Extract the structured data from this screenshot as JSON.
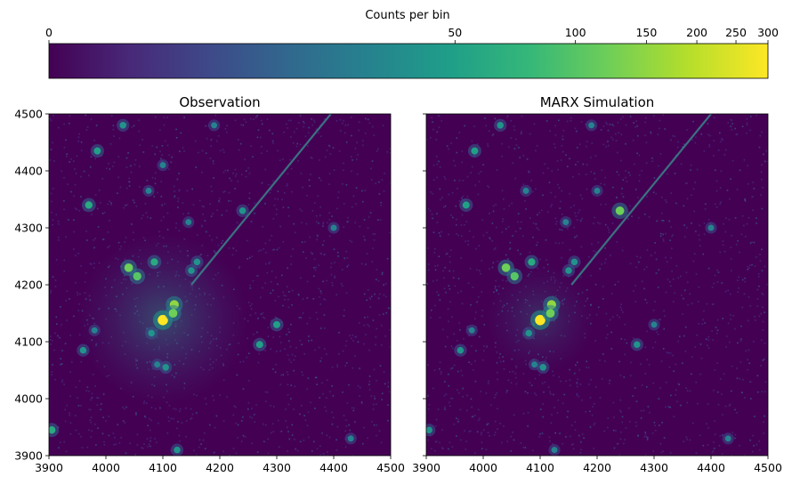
{
  "colorbar": {
    "label": "Counts per bin",
    "scale": "asinh",
    "ticks": [
      0,
      50,
      100,
      150,
      200,
      250,
      300
    ],
    "tick_labels": [
      "0",
      "50",
      "100",
      "150",
      "200",
      "250",
      "300"
    ],
    "vmin": 0,
    "vmax": 300,
    "colors": [
      "#440154",
      "#482878",
      "#3e4989",
      "#31688e",
      "#26828e",
      "#1f9e89",
      "#35b779",
      "#6ece58",
      "#b5de2b",
      "#fde725"
    ]
  },
  "chart_data": [
    {
      "type": "heatmap",
      "title": "Observation",
      "xlabel": "",
      "ylabel": "",
      "xlim": [
        3900,
        4500
      ],
      "ylim": [
        3900,
        4500
      ],
      "x_ticks": [
        3900,
        4000,
        4100,
        4200,
        4300,
        4400,
        4500
      ],
      "y_ticks": [
        3900,
        4000,
        4100,
        4200,
        4300,
        4400,
        4500
      ],
      "x_tick_labels": [
        "3900",
        "4000",
        "4100",
        "4200",
        "4300",
        "4400",
        "4500"
      ],
      "y_tick_labels": [
        "3900",
        "4000",
        "4100",
        "4200",
        "4300",
        "4400",
        "4500"
      ],
      "show_y_tick_labels": true,
      "sources": [
        {
          "x": 4100,
          "y": 4138,
          "counts": 300
        },
        {
          "x": 4120,
          "y": 4165,
          "counts": 150
        },
        {
          "x": 4118,
          "y": 4150,
          "counts": 120
        },
        {
          "x": 4040,
          "y": 4230,
          "counts": 120
        },
        {
          "x": 4055,
          "y": 4215,
          "counts": 100
        },
        {
          "x": 4085,
          "y": 4240,
          "counts": 60
        },
        {
          "x": 4080,
          "y": 4115,
          "counts": 40
        },
        {
          "x": 4240,
          "y": 4330,
          "counts": 40
        },
        {
          "x": 4300,
          "y": 4130,
          "counts": 50
        },
        {
          "x": 3970,
          "y": 4340,
          "counts": 60
        },
        {
          "x": 3985,
          "y": 4435,
          "counts": 50
        },
        {
          "x": 4030,
          "y": 4480,
          "counts": 40
        },
        {
          "x": 4190,
          "y": 4480,
          "counts": 30
        },
        {
          "x": 4400,
          "y": 4300,
          "counts": 30
        },
        {
          "x": 4270,
          "y": 4095,
          "counts": 50
        },
        {
          "x": 3960,
          "y": 4085,
          "counts": 40
        },
        {
          "x": 3980,
          "y": 4120,
          "counts": 30
        },
        {
          "x": 3905,
          "y": 3945,
          "counts": 60
        },
        {
          "x": 4125,
          "y": 3910,
          "counts": 40
        },
        {
          "x": 4150,
          "y": 4225,
          "counts": 40
        },
        {
          "x": 4160,
          "y": 4240,
          "counts": 40
        },
        {
          "x": 4145,
          "y": 4310,
          "counts": 30
        },
        {
          "x": 4105,
          "y": 4055,
          "counts": 40
        },
        {
          "x": 4090,
          "y": 4060,
          "counts": 30
        },
        {
          "x": 4430,
          "y": 3930,
          "counts": 30
        },
        {
          "x": 4100,
          "y": 4410,
          "counts": 30
        },
        {
          "x": 4075,
          "y": 4365,
          "counts": 30
        }
      ],
      "streak": {
        "from": [
          4150,
          4200
        ],
        "to": [
          4395,
          4500
        ]
      }
    },
    {
      "type": "heatmap",
      "title": "MARX Simulation",
      "xlabel": "",
      "ylabel": "",
      "xlim": [
        3900,
        4500
      ],
      "ylim": [
        3900,
        4500
      ],
      "x_ticks": [
        3900,
        4000,
        4100,
        4200,
        4300,
        4400,
        4500
      ],
      "y_ticks": [
        3900,
        4000,
        4100,
        4200,
        4300,
        4400,
        4500
      ],
      "x_tick_labels": [
        "3900",
        "4000",
        "4100",
        "4200",
        "4300",
        "4400",
        "4500"
      ],
      "y_tick_labels": [
        "3900",
        "4000",
        "4100",
        "4200",
        "4300",
        "4400",
        "4500"
      ],
      "show_y_tick_labels": false,
      "sources": [
        {
          "x": 4100,
          "y": 4138,
          "counts": 300
        },
        {
          "x": 4120,
          "y": 4165,
          "counts": 150
        },
        {
          "x": 4118,
          "y": 4150,
          "counts": 120
        },
        {
          "x": 4040,
          "y": 4230,
          "counts": 120
        },
        {
          "x": 4055,
          "y": 4215,
          "counts": 100
        },
        {
          "x": 4085,
          "y": 4240,
          "counts": 60
        },
        {
          "x": 4080,
          "y": 4115,
          "counts": 40
        },
        {
          "x": 4240,
          "y": 4330,
          "counts": 120
        },
        {
          "x": 4300,
          "y": 4130,
          "counts": 30
        },
        {
          "x": 3970,
          "y": 4340,
          "counts": 50
        },
        {
          "x": 3985,
          "y": 4435,
          "counts": 50
        },
        {
          "x": 4030,
          "y": 4480,
          "counts": 40
        },
        {
          "x": 4190,
          "y": 4480,
          "counts": 30
        },
        {
          "x": 4400,
          "y": 4300,
          "counts": 30
        },
        {
          "x": 4270,
          "y": 4095,
          "counts": 40
        },
        {
          "x": 3960,
          "y": 4085,
          "counts": 40
        },
        {
          "x": 3980,
          "y": 4120,
          "counts": 30
        },
        {
          "x": 3905,
          "y": 3945,
          "counts": 40
        },
        {
          "x": 4125,
          "y": 3910,
          "counts": 30
        },
        {
          "x": 4150,
          "y": 4225,
          "counts": 40
        },
        {
          "x": 4160,
          "y": 4240,
          "counts": 40
        },
        {
          "x": 4145,
          "y": 4310,
          "counts": 30
        },
        {
          "x": 4105,
          "y": 4055,
          "counts": 40
        },
        {
          "x": 4090,
          "y": 4060,
          "counts": 30
        },
        {
          "x": 4430,
          "y": 3930,
          "counts": 30
        },
        {
          "x": 4200,
          "y": 4365,
          "counts": 30
        },
        {
          "x": 4075,
          "y": 4365,
          "counts": 30
        }
      ],
      "streak": {
        "from": [
          4155,
          4200
        ],
        "to": [
          4400,
          4500
        ]
      }
    }
  ]
}
